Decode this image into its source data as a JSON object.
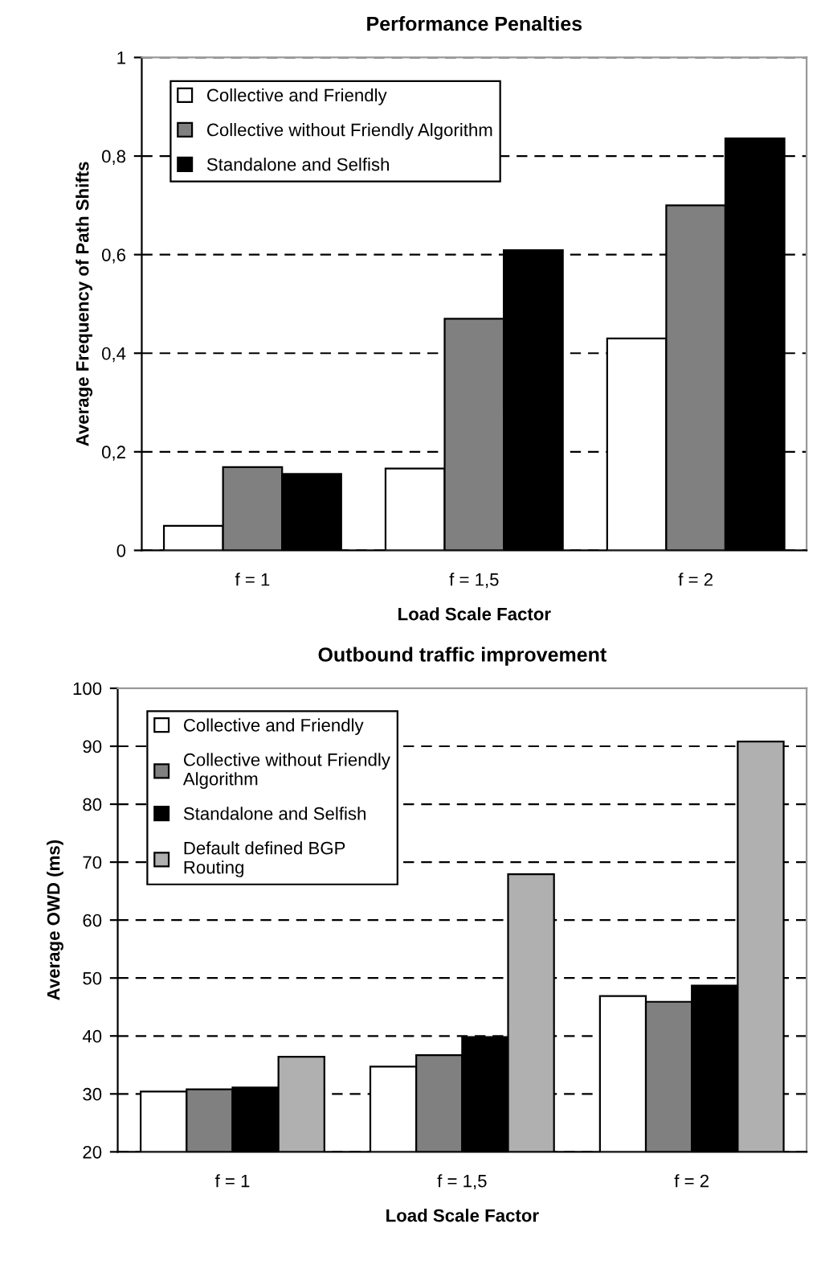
{
  "chart_data": [
    {
      "type": "bar",
      "title": "Performance Penalties",
      "xlabel": "Load Scale Factor",
      "ylabel": "Average Frequency of Path Shifts",
      "categories": [
        "f = 1",
        "f = 1,5",
        "f = 2"
      ],
      "series": [
        {
          "name": "Collective and Friendly",
          "color": "#ffffff",
          "values": [
            0.05,
            0.166,
            0.43
          ]
        },
        {
          "name": "Collective without Friendly Algorithm",
          "color": "#808080",
          "values": [
            0.169,
            0.47,
            0.7
          ]
        },
        {
          "name": "Standalone and Selfish",
          "color": "#000000",
          "values": [
            0.155,
            0.609,
            0.836
          ]
        }
      ],
      "ylim": [
        0,
        1
      ],
      "yticks": [
        0,
        {
          "value": 0.2,
          "label": "0,2"
        },
        {
          "value": 0.4,
          "label": "0,4"
        },
        {
          "value": 0.6,
          "label": "0,6"
        },
        {
          "value": 0.8,
          "label": "0,8"
        },
        1
      ],
      "grid": "y",
      "legend": "top left"
    },
    {
      "type": "bar",
      "title": "Outbound traffic improvement",
      "xlabel": "Load Scale Factor",
      "ylabel": "Average OWD (ms)",
      "categories": [
        "f = 1",
        "f = 1,5",
        "f = 2"
      ],
      "series": [
        {
          "name": "Collective and Friendly",
          "color": "#ffffff",
          "values": [
            30.4,
            34.7,
            46.9
          ]
        },
        {
          "name": "Collective without Friendly\nAlgorithm",
          "color": "#808080",
          "values": [
            30.8,
            36.7,
            45.9
          ]
        },
        {
          "name": "Standalone and Selfish",
          "color": "#000000",
          "values": [
            31.1,
            39.8,
            48.7
          ]
        },
        {
          "name": "Default defined BGP\nRouting",
          "color": "#b0b0b0",
          "values": [
            36.4,
            67.9,
            90.8
          ]
        }
      ],
      "ylim": [
        20,
        100
      ],
      "yticks": [
        20,
        30,
        40,
        50,
        60,
        70,
        80,
        90,
        100
      ],
      "grid": "y",
      "legend": "top left"
    }
  ]
}
